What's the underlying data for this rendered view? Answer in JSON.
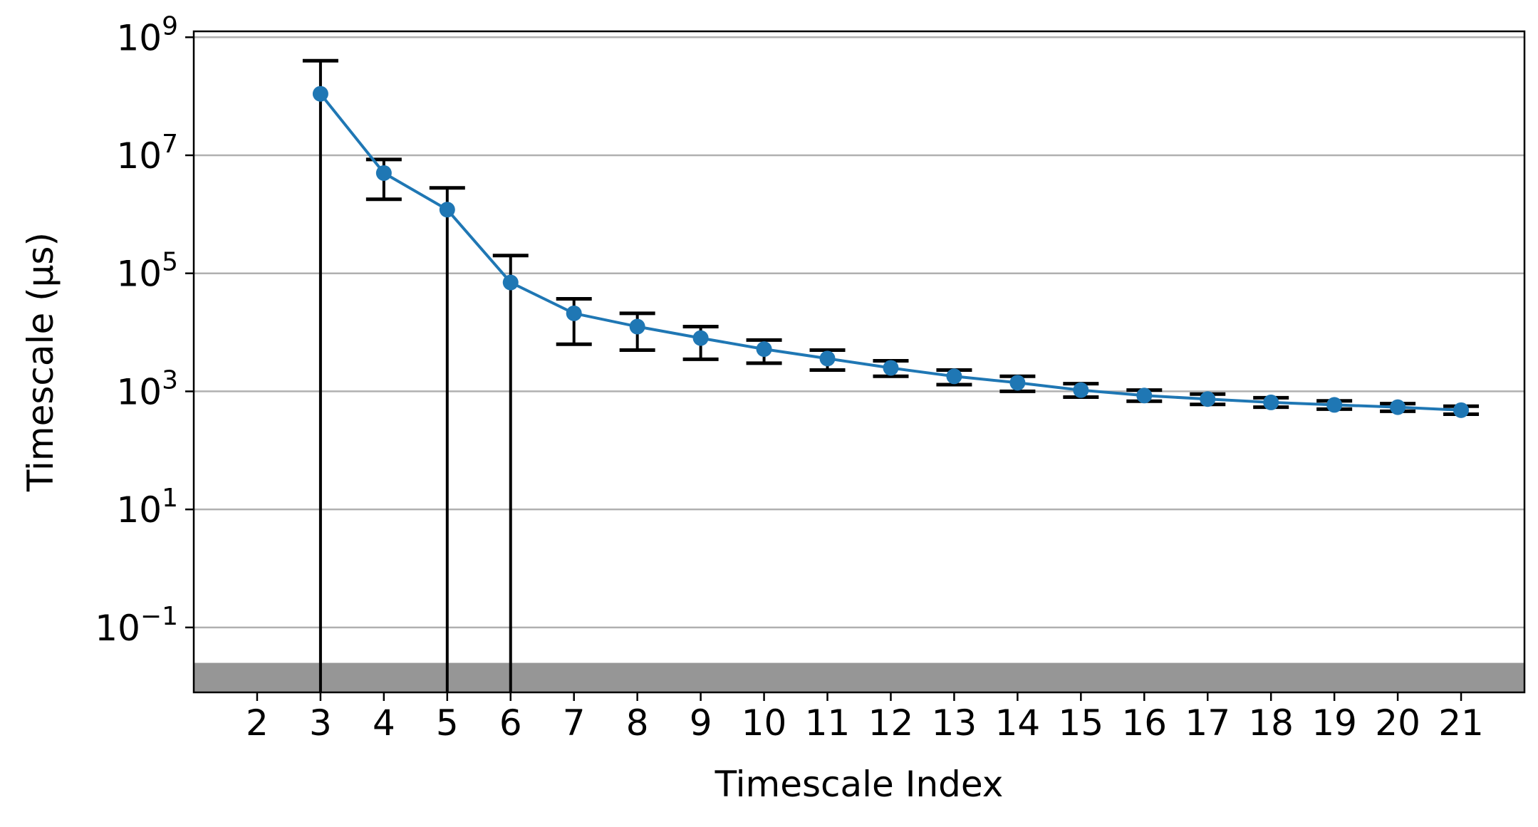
{
  "chart_data": {
    "type": "line",
    "title": "",
    "xlabel": "Timescale Index",
    "ylabel": "Timescale (μs)",
    "yscale": "log",
    "ylim_exponents": [
      -2.1,
      9.1
    ],
    "xlim": [
      1,
      22
    ],
    "grid": "horizontal at major y ticks",
    "legend": "none",
    "x_ticks": [
      "2",
      "3",
      "4",
      "5",
      "6",
      "7",
      "8",
      "9",
      "10",
      "11",
      "12",
      "13",
      "14",
      "15",
      "16",
      "17",
      "18",
      "19",
      "20",
      "21"
    ],
    "y_ticks": [
      {
        "base": "10",
        "exp": "9"
      },
      {
        "base": "10",
        "exp": "7"
      },
      {
        "base": "10",
        "exp": "5"
      },
      {
        "base": "10",
        "exp": "3"
      },
      {
        "base": "10",
        "exp": "1"
      },
      {
        "base": "10",
        "exp": "−1"
      }
    ],
    "series": [
      {
        "color": "#1f77b4",
        "marker": "circle",
        "points": [
          {
            "x": 3,
            "y": 110000000,
            "lower": null,
            "upper": 400000000
          },
          {
            "x": 4,
            "y": 5000000,
            "lower": 1800000,
            "upper": 8500000
          },
          {
            "x": 5,
            "y": 1200000,
            "lower": null,
            "upper": 2800000
          },
          {
            "x": 6,
            "y": 70000,
            "lower": null,
            "upper": 200000
          },
          {
            "x": 7,
            "y": 21000,
            "lower": 6300,
            "upper": 37000
          },
          {
            "x": 8,
            "y": 12500,
            "lower": 5000,
            "upper": 21000
          },
          {
            "x": 9,
            "y": 8000,
            "lower": 3500,
            "upper": 12500
          },
          {
            "x": 10,
            "y": 5200,
            "lower": 3000,
            "upper": 7400
          },
          {
            "x": 11,
            "y": 3600,
            "lower": 2300,
            "upper": 5000
          },
          {
            "x": 12,
            "y": 2500,
            "lower": 1800,
            "upper": 3300
          },
          {
            "x": 13,
            "y": 1800,
            "lower": 1300,
            "upper": 2300
          },
          {
            "x": 14,
            "y": 1400,
            "lower": 1000,
            "upper": 1800
          },
          {
            "x": 15,
            "y": 1050,
            "lower": 800,
            "upper": 1350
          },
          {
            "x": 16,
            "y": 850,
            "lower": 680,
            "upper": 1050
          },
          {
            "x": 17,
            "y": 740,
            "lower": 600,
            "upper": 900
          },
          {
            "x": 18,
            "y": 650,
            "lower": 540,
            "upper": 780
          },
          {
            "x": 19,
            "y": 590,
            "lower": 500,
            "upper": 690
          },
          {
            "x": 20,
            "y": 540,
            "lower": 460,
            "upper": 620
          },
          {
            "x": 21,
            "y": 480,
            "lower": 410,
            "upper": 560
          }
        ]
      }
    ],
    "shaded_band": {
      "color": "#969696",
      "from_exp": -2.1,
      "to_exp": -1.6
    },
    "colors": {
      "line": "#1f77b4",
      "errorbar": "#000000",
      "grid": "#b0b0b0",
      "band": "#969696"
    }
  }
}
